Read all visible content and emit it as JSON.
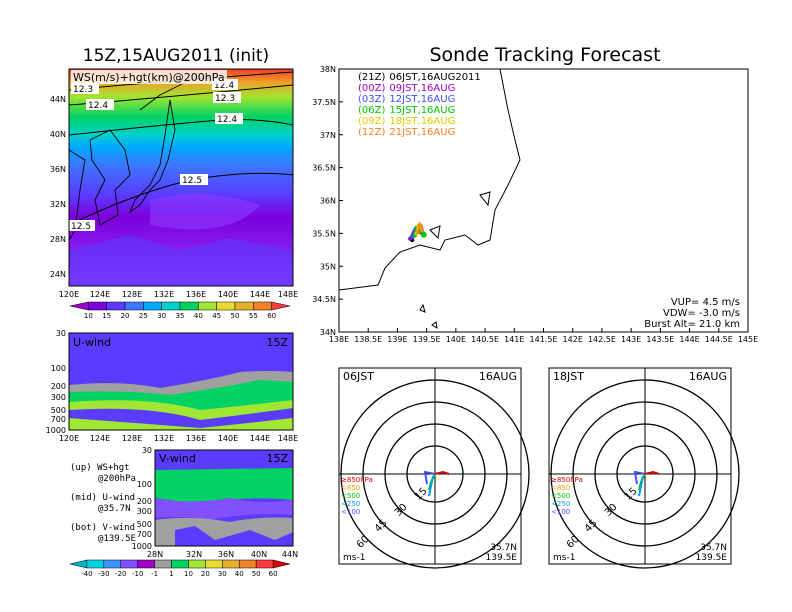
{
  "left_title": "15Z,15AUG2011 (init)",
  "right_title": "Sonde Tracking Forecast",
  "top_map": {
    "field_label": "WS(m/s)+hgt(km)@200hPa",
    "x_ticks": [
      "120E",
      "124E",
      "128E",
      "132E",
      "136E",
      "140E",
      "144E",
      "148E"
    ],
    "y_ticks": [
      "44N",
      "40N",
      "36N",
      "32N",
      "28N",
      "24N"
    ],
    "contour_labels": [
      "12.3",
      "12.4",
      "12.3",
      "12.4",
      "12.5",
      "12.5",
      "12.4",
      "12.3",
      "12.3"
    ]
  },
  "ws_colorbar": {
    "labels": [
      "10",
      "15",
      "20",
      "25",
      "30",
      "35",
      "40",
      "45",
      "50",
      "55",
      "60"
    ],
    "colors": [
      "#a000c8",
      "#7d00dc",
      "#5a3cff",
      "#3c78ff",
      "#00aaff",
      "#00d2c8",
      "#00d264",
      "#a0e632",
      "#e6dc32",
      "#e6af2d",
      "#f08228",
      "#fa3c3c"
    ]
  },
  "u_panel": {
    "label": "U-wind",
    "time": "15Z",
    "y_ticks": [
      "30",
      "100",
      "200",
      "300",
      "500",
      "700",
      "1000"
    ],
    "x_ticks": [
      "120E",
      "124E",
      "128E",
      "132E",
      "136E",
      "140E",
      "144E",
      "148E"
    ]
  },
  "v_panel": {
    "label": "V-wind",
    "time": "15Z",
    "y_ticks": [
      "30",
      "100",
      "200",
      "300",
      "500",
      "700",
      "1000"
    ],
    "x_ticks": [
      "28N",
      "32N",
      "36N",
      "40N",
      "44N"
    ]
  },
  "legend_text": {
    "up1": "(up) WS+hgt",
    "up2": "@200hPa",
    "mid1": "(mid) U-wind",
    "mid2": "@35.7N",
    "bot1": "(bot) V-wind",
    "bot2": "@139.5E"
  },
  "uv_colorbar": {
    "labels": [
      "-40",
      "-30",
      "-20",
      "-10",
      "-1",
      "1",
      "10",
      "20",
      "30",
      "40",
      "50",
      "60"
    ],
    "colors": [
      "#00b4c8",
      "#00d2e6",
      "#3c96ff",
      "#8250ff",
      "#a000c8",
      "#a0a0a0",
      "#00d264",
      "#a0e632",
      "#e6dc32",
      "#e6af2d",
      "#f08228",
      "#fa3c3c",
      "#dc0000"
    ]
  },
  "track_map": {
    "x_ticks": [
      "138E",
      "138.5E",
      "139E",
      "139.5E",
      "140E",
      "140.5E",
      "141E",
      "141.5E",
      "142E",
      "142.5E",
      "143E",
      "143.5E",
      "144E",
      "144.5E",
      "145E"
    ],
    "y_ticks": [
      "38N",
      "37.5N",
      "37N",
      "36.5N",
      "36N",
      "35.5N",
      "35N",
      "34.5N",
      "34N"
    ],
    "legend": [
      {
        "z": "(21Z)",
        "jst": "06JST,16AUG2011",
        "color": "#000000"
      },
      {
        "z": "(00Z)",
        "jst": "09JST,16AUG",
        "color": "#a000c8"
      },
      {
        "z": "(03Z)",
        "jst": "12JST,16AUG",
        "color": "#3c50ff"
      },
      {
        "z": "(06Z)",
        "jst": "15JST,16AUG",
        "color": "#00c800"
      },
      {
        "z": "(09Z)",
        "jst": "18JST,16AUG",
        "color": "#e6c800"
      },
      {
        "z": "(12Z)",
        "jst": "21JST,16AUG",
        "color": "#f08228"
      }
    ],
    "vup": "VUP= 4.5 m/s",
    "vdw": "VDW= -3.0 m/s",
    "burst": "Burst Alt= 21.0 km"
  },
  "hodo_left": {
    "time": "06JST",
    "date": "16AUG",
    "unit": "ms-1",
    "lat": "35.7N",
    "lon": "139.5E"
  },
  "hodo_right": {
    "time": "18JST",
    "date": "16AUG",
    "unit": "ms-1",
    "lat": "35.7N",
    "lon": "139.5E"
  },
  "hodo_levels": [
    "≥850hPa",
    "<850",
    "<500",
    "<250",
    "<100"
  ],
  "hodo_level_colors": [
    "#dc0000",
    "#f0a000",
    "#00c800",
    "#00a0e6",
    "#3c50ff"
  ],
  "hodo_rings": [
    "15",
    "30",
    "45",
    "60"
  ],
  "chart_data": {
    "type": "line",
    "title": "Sonde Tracking Forecast",
    "xlabel": "",
    "ylabel": "",
    "xlim": [
      138.0,
      145.0
    ],
    "ylim": [
      34.0,
      38.0
    ],
    "series": [
      {
        "name": "(21Z) 06JST,16AUG2011",
        "x": [
          139.45,
          139.35,
          139.27,
          139.25
        ],
        "y": [
          35.48,
          35.52,
          35.45,
          35.4
        ]
      },
      {
        "name": "(00Z) 09JST,16AUG",
        "x": [
          139.45,
          139.35,
          139.28,
          139.22
        ],
        "y": [
          35.48,
          35.55,
          35.55,
          35.42
        ]
      },
      {
        "name": "(03Z) 12JST,16AUG",
        "x": [
          139.45,
          139.35,
          139.3,
          139.25
        ],
        "y": [
          35.48,
          35.56,
          35.58,
          35.45
        ]
      },
      {
        "name": "(06Z) 15JST,16AUG",
        "x": [
          139.45,
          139.38,
          139.32,
          139.3
        ],
        "y": [
          35.48,
          35.58,
          35.6,
          35.47
        ]
      },
      {
        "name": "(09Z) 18JST,16AUG",
        "x": [
          139.45,
          139.4,
          139.35,
          139.33
        ],
        "y": [
          35.48,
          35.6,
          35.63,
          35.5
        ]
      },
      {
        "name": "(12Z) 21JST,16AUG",
        "x": [
          139.45,
          139.42,
          139.38,
          139.36
        ],
        "y": [
          35.48,
          35.62,
          35.65,
          35.52
        ]
      }
    ]
  }
}
